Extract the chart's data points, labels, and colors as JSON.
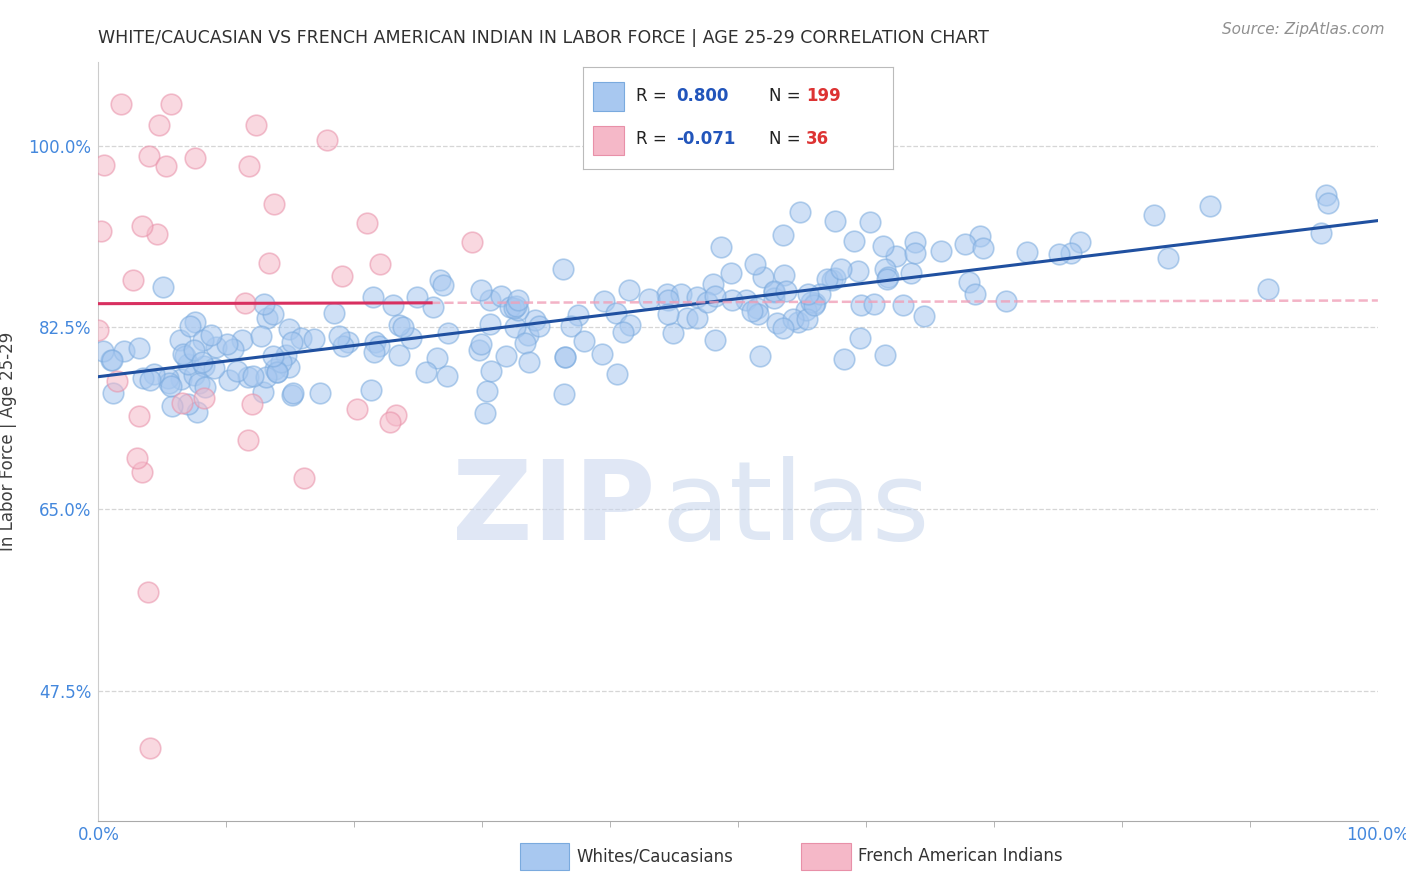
{
  "title": "WHITE/CAUCASIAN VS FRENCH AMERICAN INDIAN IN LABOR FORCE | AGE 25-29 CORRELATION CHART",
  "source": "Source: ZipAtlas.com",
  "ylabel": "In Labor Force | Age 25-29",
  "watermark_zip": "ZIP",
  "watermark_atlas": "atlas",
  "blue_label": "Whites/Caucasians",
  "pink_label": "French American Indians",
  "blue_R": 0.8,
  "blue_N": 199,
  "pink_R": -0.071,
  "pink_N": 36,
  "xlim": [
    0.0,
    1.0
  ],
  "ylim": [
    0.35,
    1.08
  ],
  "yticks": [
    0.475,
    0.65,
    0.825,
    1.0
  ],
  "ytick_labels": [
    "47.5%",
    "65.0%",
    "82.5%",
    "100.0%"
  ],
  "xtick_labels": [
    "0.0%",
    "100.0%"
  ],
  "blue_color": "#A8C8F0",
  "pink_color": "#F5B8C8",
  "blue_edge_color": "#7AAADE",
  "pink_edge_color": "#E890A8",
  "blue_line_color": "#2050A0",
  "pink_line_color": "#D83060",
  "pink_dash_color": "#F0A0B8",
  "grid_color": "#CCCCCC",
  "title_color": "#303030",
  "source_color": "#909090",
  "axis_label_color": "#404040",
  "tick_color": "#4488DD",
  "legend_R_color": "#2255BB",
  "legend_N_color": "#DD3333",
  "background_color": "#FFFFFF",
  "legend_border_color": "#BBBBBB",
  "watermark_zip_color": "#C8D5EE",
  "watermark_atlas_color": "#B8CBE8"
}
